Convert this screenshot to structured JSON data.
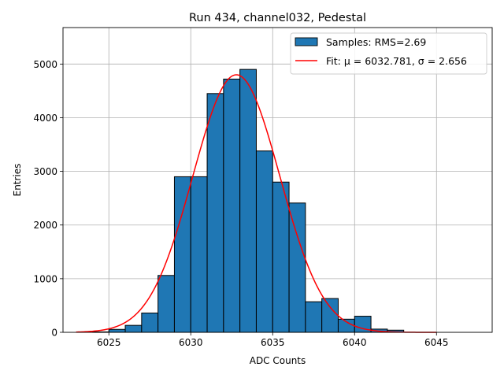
{
  "chart_data": {
    "type": "bar",
    "title": "Run 434, channel032, Pedestal",
    "xlabel": "ADC Counts",
    "ylabel": "Entries",
    "xlim": [
      6022.2,
      6048.4
    ],
    "ylim": [
      0,
      5680
    ],
    "grid": true,
    "legend_position": "top-right",
    "x_ticks": [
      6025,
      6030,
      6035,
      6040,
      6045
    ],
    "y_ticks": [
      0,
      1000,
      2000,
      3000,
      4000,
      5000
    ],
    "bin_width": 1,
    "series": [
      {
        "name": "Samples: RMS=2.69",
        "kind": "histogram",
        "color": "#1f77b4",
        "edge_color": "#000000",
        "bins": [
          {
            "left": 6024,
            "value": 8
          },
          {
            "left": 6025,
            "value": 55
          },
          {
            "left": 6026,
            "value": 130
          },
          {
            "left": 6027,
            "value": 360
          },
          {
            "left": 6028,
            "value": 1060
          },
          {
            "left": 6029,
            "value": 2900
          },
          {
            "left": 6030,
            "value": 2900
          },
          {
            "left": 6031,
            "value": 4450
          },
          {
            "left": 6032,
            "value": 4720
          },
          {
            "left": 6033,
            "value": 4900
          },
          {
            "left": 6034,
            "value": 3380
          },
          {
            "left": 6035,
            "value": 2800
          },
          {
            "left": 6036,
            "value": 2410
          },
          {
            "left": 6037,
            "value": 570
          },
          {
            "left": 6038,
            "value": 630
          },
          {
            "left": 6039,
            "value": 245
          },
          {
            "left": 6040,
            "value": 300
          },
          {
            "left": 6041,
            "value": 60
          },
          {
            "left": 6042,
            "value": 40
          }
        ]
      },
      {
        "name": "Fit: μ = 6032.781, σ = 2.656",
        "kind": "gaussian-fit",
        "color": "#ff0000",
        "mu": 6032.781,
        "sigma": 2.656,
        "amplitude": 4800,
        "x_range": [
          6023,
          6045
        ]
      }
    ]
  }
}
